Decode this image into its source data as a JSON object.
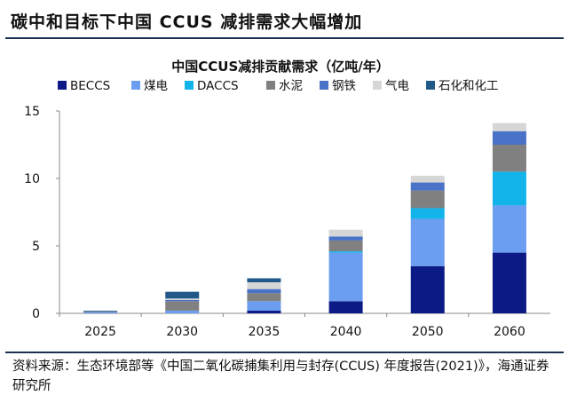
{
  "header": {
    "title": "碳中和目标下中国 CCUS 减排需求大幅增加"
  },
  "footer": {
    "source": "资料来源：生态环境部等《中国二氧化碳捕集利用与封存(CCUS) 年度报告(2021)》，海通证券研究所"
  },
  "chart_data": {
    "type": "bar",
    "stacked": true,
    "title": "中国CCUS减排贡献需求（亿吨/年）",
    "xlabel": "",
    "ylabel": "",
    "ylim": [
      0,
      15
    ],
    "yticks": [
      "0",
      "5",
      "10",
      "15"
    ],
    "grid": false,
    "legend_position": "top",
    "categories": [
      "2025",
      "2030",
      "2035",
      "2040",
      "2050",
      "2060"
    ],
    "series": [
      {
        "name": "BECCS",
        "color": "#0c1a86",
        "values": [
          0.0,
          0.0,
          0.2,
          0.9,
          3.5,
          4.5
        ]
      },
      {
        "name": "煤电",
        "color": "#6b9df0",
        "values": [
          0.1,
          0.2,
          0.7,
          3.6,
          3.5,
          3.5
        ]
      },
      {
        "name": "DACCS",
        "color": "#12b4ea",
        "values": [
          0.0,
          0.0,
          0.0,
          0.1,
          0.8,
          2.5
        ]
      },
      {
        "name": "水泥",
        "color": "#808080",
        "values": [
          0.05,
          0.7,
          0.6,
          0.8,
          1.3,
          2.0
        ]
      },
      {
        "name": "钢铁",
        "color": "#4a72c7",
        "values": [
          0.0,
          0.1,
          0.3,
          0.3,
          0.6,
          1.0
        ]
      },
      {
        "name": "气电",
        "color": "#d6d6d6",
        "values": [
          0.0,
          0.1,
          0.5,
          0.5,
          0.5,
          0.6
        ]
      },
      {
        "name": "石化和化工",
        "color": "#215a88",
        "values": [
          0.05,
          0.5,
          0.3,
          0.0,
          0.0,
          0.0
        ]
      }
    ]
  }
}
